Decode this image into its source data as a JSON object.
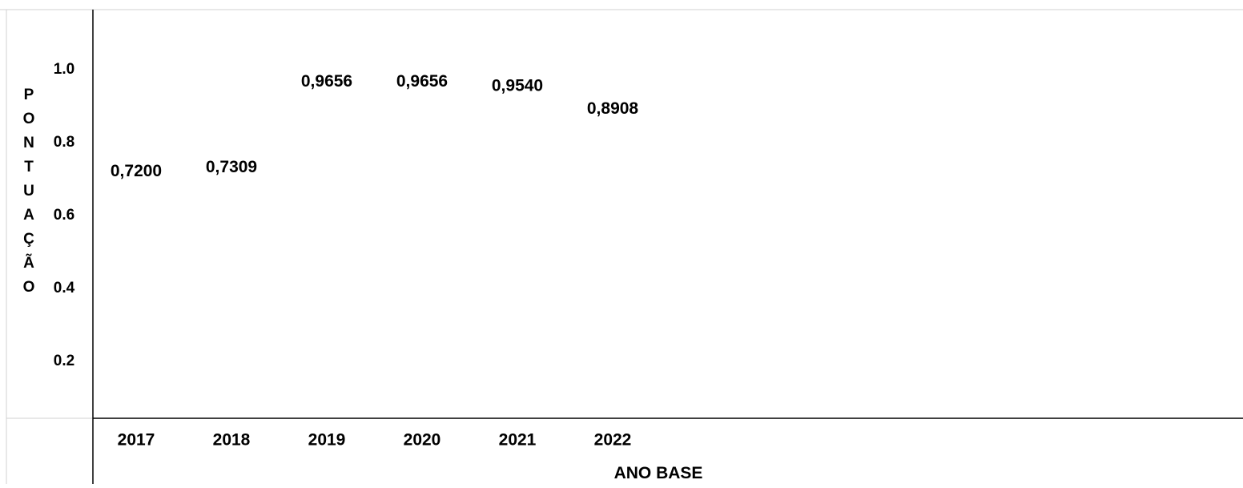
{
  "chart_data": {
    "type": "scatter",
    "categories": [
      "2017",
      "2018",
      "2019",
      "2020",
      "2021",
      "2022"
    ],
    "values": [
      0.72,
      0.7309,
      0.9656,
      0.9656,
      0.954,
      0.8908
    ],
    "data_labels": [
      "0,7200",
      "0,7309",
      "0,9656",
      "0,9656",
      "0,9540",
      "0,8908"
    ],
    "y_ticks": [
      "0.2",
      "0.4",
      "0.6",
      "0.8",
      "1.0"
    ],
    "y_tick_values": [
      0.2,
      0.4,
      0.6,
      0.8,
      1.0
    ],
    "xlabel": "ANO BASE",
    "ylabel": "PONTUAÇÃO",
    "ylim": [
      0,
      1.1
    ],
    "grid": false,
    "legend": "none"
  }
}
